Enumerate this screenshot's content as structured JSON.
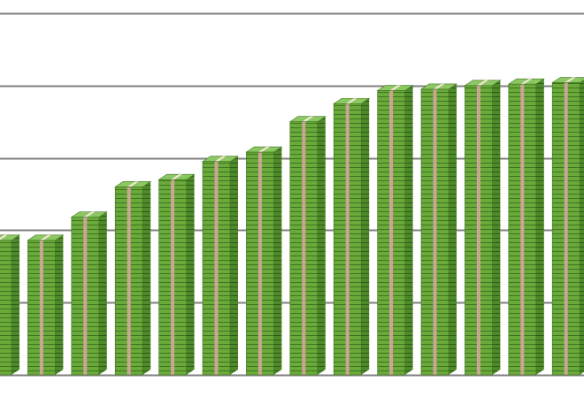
{
  "colors": {
    "background": "#ffffff",
    "gridline": "#7f7f7f",
    "stack_front": "#6aaa3a",
    "stack_side": "#4f8a2a",
    "stack_top": "#8cc862",
    "bill_line": "#3f7420",
    "band": "#d7a5a0"
  },
  "chart_data": {
    "type": "bar",
    "title": "",
    "xlabel": "",
    "ylabel": "",
    "grid": true,
    "legend": "none",
    "ylim": [
      0,
      5
    ],
    "gridlines": [
      0,
      1,
      2,
      3,
      4,
      5
    ],
    "categories": [
      "",
      "",
      "",
      "",
      "",
      "",
      "",
      "",
      "",
      "",
      "",
      "",
      "",
      ""
    ],
    "series": [
      {
        "values": [
          1.86,
          1.86,
          2.18,
          2.6,
          2.7,
          2.95,
          3.08,
          3.5,
          3.75,
          3.93,
          3.95,
          4.0,
          4.02,
          4.04
        ]
      }
    ]
  }
}
